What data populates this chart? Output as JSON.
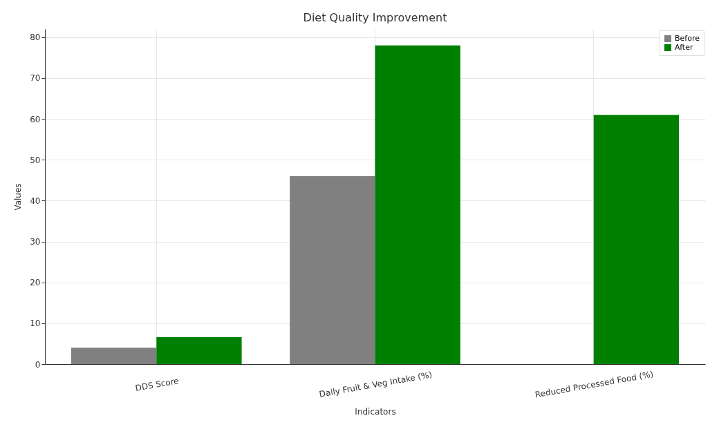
{
  "chart_data": {
    "type": "bar",
    "title": "Diet Quality Improvement",
    "xlabel": "Indicators",
    "ylabel": "Values",
    "categories": [
      "DDS Score",
      "Daily Fruit & Veg Intake (%)",
      "Reduced Processed Food (%)"
    ],
    "series": [
      {
        "name": "Before",
        "color": "#808080",
        "values": [
          4,
          46,
          null
        ]
      },
      {
        "name": "After",
        "color": "#008000",
        "values": [
          6.6,
          78,
          61
        ]
      }
    ],
    "ylim": [
      0,
      82
    ],
    "yticks": [
      0,
      10,
      20,
      30,
      40,
      50,
      60,
      70,
      80
    ],
    "grid": true,
    "legend": "top right"
  }
}
